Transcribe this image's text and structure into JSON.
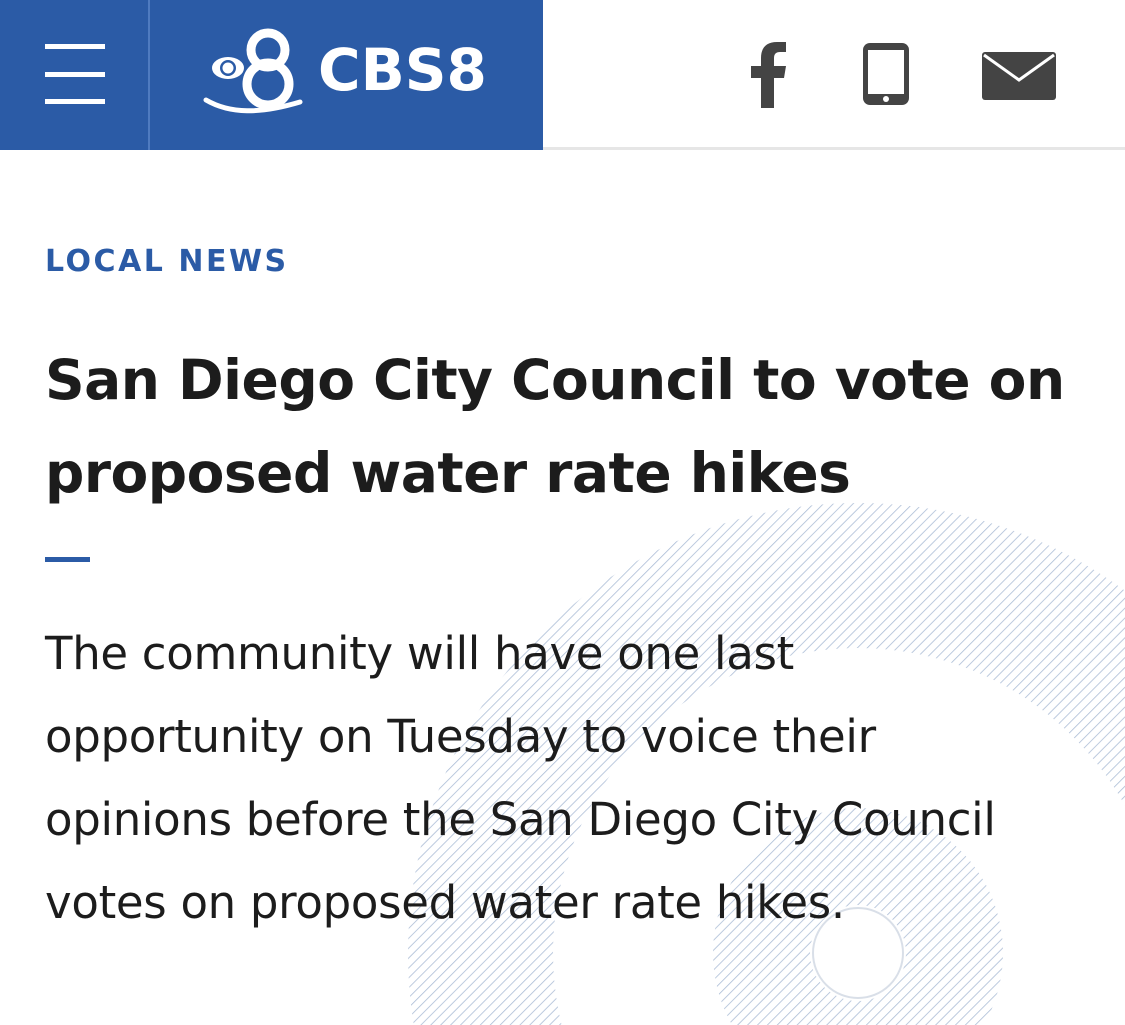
{
  "header": {
    "brand_name": "CBS8",
    "brand_color": "#2b5ba6",
    "menu_icon": "hamburger-menu-icon",
    "share": [
      {
        "name": "facebook-icon"
      },
      {
        "name": "phone-icon"
      },
      {
        "name": "email-icon"
      }
    ]
  },
  "article": {
    "category": "LOCAL NEWS",
    "headline": "San Diego City Council to vote on proposed water rate hikes",
    "summary": "The community will have one last opportunity on Tuesday to voice their opinions before the San Diego City Council votes on proposed water rate hikes."
  }
}
